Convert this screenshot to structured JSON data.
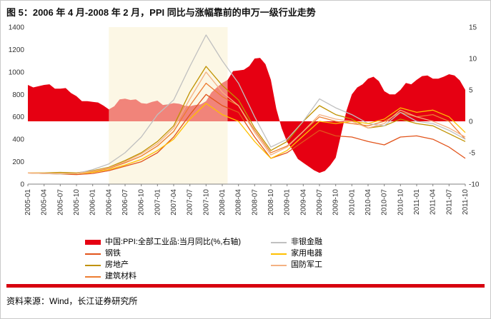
{
  "figure": {
    "title": "图 5：2006 年 4 月-2008 年 2 月，PPI 同比与涨幅靠前的申万一级行业走势",
    "source": "资料来源：Wind，长江证券研究所"
  },
  "colors": {
    "accent_red": "#e60012",
    "highlight_band": "#faf0d0",
    "divider_red": "#d7000f",
    "axis_line": "#808080",
    "axis_text": "#333333"
  },
  "chart_data": {
    "type": "area+line",
    "title": "PPI 同比与涨幅靠前的申万一级行业走势",
    "x_start": "2005-01",
    "x_end": "2011-10",
    "x_tick_labels": [
      "2005-01",
      "2005-04",
      "2005-07",
      "2005-10",
      "2006-01",
      "2006-04",
      "2006-07",
      "2006-10",
      "2007-01",
      "2007-04",
      "2007-07",
      "2007-10",
      "2008-01",
      "2008-04",
      "2008-07",
      "2008-10",
      "2009-01",
      "2009-04",
      "2009-07",
      "2009-10",
      "2010-01",
      "2010-04",
      "2010-07",
      "2010-10",
      "2011-01",
      "2011-04",
      "2011-07",
      "2011-10"
    ],
    "left_axis": {
      "min": 0,
      "max": 1400,
      "ticks": [
        0,
        200,
        400,
        600,
        800,
        1000,
        1200,
        1400
      ]
    },
    "right_axis": {
      "min": -10,
      "max": 15,
      "ticks": [
        -10,
        -5,
        0,
        5,
        10,
        15
      ]
    },
    "highlight_band": {
      "start": "2006-04",
      "end": "2008-02"
    },
    "ppi": {
      "name": "中国:PPI:全部工业品:当月同比(%,右轴)",
      "axis": "right",
      "frequency": "monthly",
      "color": "#e60012",
      "values": [
        5.8,
        5.4,
        5.6,
        5.8,
        5.9,
        5.2,
        5.2,
        5.3,
        4.5,
        4.0,
        3.2,
        3.2,
        3.1,
        3.0,
        2.5,
        1.9,
        2.4,
        3.5,
        3.6,
        3.4,
        3.5,
        2.9,
        2.8,
        3.1,
        3.3,
        2.6,
        2.7,
        2.9,
        2.8,
        2.5,
        2.4,
        2.6,
        2.7,
        3.2,
        4.6,
        5.4,
        6.1,
        6.6,
        8.0,
        8.1,
        8.2,
        8.8,
        10.0,
        10.1,
        9.1,
        6.6,
        2.0,
        -1.1,
        -3.3,
        -4.5,
        -6.0,
        -6.6,
        -7.2,
        -7.8,
        -8.2,
        -7.9,
        -7.0,
        -5.8,
        -2.1,
        1.7,
        4.3,
        5.4,
        5.9,
        6.8,
        7.1,
        6.4,
        4.8,
        4.3,
        4.3,
        5.0,
        6.1,
        5.9,
        6.6,
        7.2,
        7.3,
        6.8,
        6.8,
        7.1,
        7.5,
        7.3,
        6.5,
        5.0
      ]
    },
    "series_axis": "left",
    "series_categories": [
      "2005-01",
      "2005-04",
      "2005-07",
      "2005-10",
      "2006-01",
      "2006-04",
      "2006-07",
      "2006-10",
      "2007-01",
      "2007-04",
      "2007-07",
      "2007-10",
      "2008-01",
      "2008-04",
      "2008-07",
      "2008-10",
      "2009-01",
      "2009-04",
      "2009-07",
      "2009-10",
      "2010-01",
      "2010-04",
      "2010-07",
      "2010-10",
      "2011-01",
      "2011-04",
      "2011-07",
      "2011-10"
    ],
    "series": [
      {
        "name": "钢铁",
        "color": "#e2541b",
        "values": [
          100,
          95,
          90,
          85,
          95,
          120,
          160,
          200,
          280,
          420,
          620,
          800,
          700,
          640,
          420,
          230,
          280,
          380,
          480,
          430,
          420,
          380,
          350,
          420,
          430,
          400,
          330,
          230
        ]
      },
      {
        "name": "房地产",
        "color": "#c09200",
        "values": [
          100,
          100,
          105,
          100,
          120,
          150,
          210,
          280,
          380,
          520,
          820,
          1050,
          880,
          750,
          500,
          300,
          380,
          560,
          700,
          620,
          580,
          500,
          520,
          580,
          540,
          520,
          450,
          380
        ]
      },
      {
        "name": "建筑材料",
        "color": "#ed7d31",
        "values": [
          100,
          95,
          95,
          95,
          110,
          140,
          190,
          250,
          340,
          470,
          700,
          900,
          780,
          700,
          480,
          280,
          340,
          470,
          600,
          560,
          540,
          520,
          560,
          640,
          600,
          620,
          560,
          400
        ]
      },
      {
        "name": "非银金融",
        "color": "#c0c0c0",
        "values": [
          100,
          95,
          90,
          95,
          130,
          180,
          280,
          420,
          620,
          750,
          1050,
          1330,
          1100,
          900,
          600,
          330,
          400,
          560,
          760,
          680,
          620,
          540,
          520,
          640,
          560,
          540,
          480,
          400
        ]
      },
      {
        "name": "家用电器",
        "color": "#ffc000",
        "values": [
          100,
          98,
          95,
          95,
          105,
          130,
          170,
          220,
          300,
          400,
          580,
          720,
          620,
          560,
          380,
          230,
          300,
          430,
          560,
          540,
          560,
          540,
          580,
          680,
          640,
          660,
          600,
          460
        ]
      },
      {
        "name": "国防军工",
        "color": "#f4b183",
        "values": [
          100,
          97,
          95,
          95,
          115,
          145,
          200,
          270,
          360,
          500,
          760,
          1000,
          820,
          700,
          460,
          260,
          330,
          470,
          620,
          580,
          560,
          500,
          540,
          660,
          600,
          560,
          500,
          420
        ]
      }
    ]
  }
}
